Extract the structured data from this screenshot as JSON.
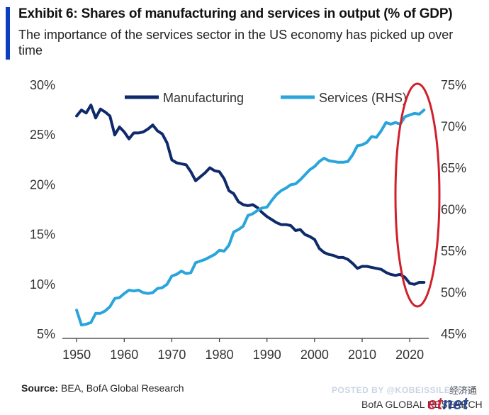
{
  "header": {
    "title": "Exhibit 6: Shares of manufacturing and services in output (% of GDP)",
    "subtitle": "The importance of the services sector in the US economy has picked up over time"
  },
  "footer": {
    "source_label": "Source:",
    "source_text": "BEA, BofA Global Research",
    "posted_by": "POSTED BY @KOBEISSILETTER",
    "bofa": "BofA GLOBAL RESEARCH",
    "wm_cn": "经济通",
    "wm_logo_et": "et",
    "wm_logo_net": "net"
  },
  "chart_data": {
    "type": "line",
    "title": "",
    "xlim": [
      1947,
      2024
    ],
    "x_ticks": [
      1950,
      1960,
      1970,
      1980,
      1990,
      2000,
      2010,
      2020
    ],
    "left_axis": {
      "lim": [
        5,
        30
      ],
      "ticks": [
        5,
        10,
        15,
        20,
        25,
        30
      ],
      "suffix": "%"
    },
    "right_axis": {
      "lim": [
        45,
        75
      ],
      "ticks": [
        45,
        50,
        55,
        60,
        65,
        70,
        75
      ],
      "suffix": "%"
    },
    "legend_position": "top-center",
    "grid": false,
    "series": [
      {
        "name": "Manufacturing",
        "axis": "left",
        "color": "#0f2a6b",
        "x": [
          1950,
          1951,
          1952,
          1953,
          1954,
          1955,
          1956,
          1957,
          1958,
          1959,
          1960,
          1961,
          1962,
          1963,
          1964,
          1965,
          1966,
          1967,
          1968,
          1969,
          1970,
          1971,
          1972,
          1973,
          1974,
          1975,
          1976,
          1977,
          1978,
          1979,
          1980,
          1981,
          1982,
          1983,
          1984,
          1985,
          1986,
          1987,
          1988,
          1989,
          1990,
          1991,
          1992,
          1993,
          1994,
          1995,
          1996,
          1997,
          1998,
          1999,
          2000,
          2001,
          2002,
          2003,
          2004,
          2005,
          2006,
          2007,
          2008,
          2009,
          2010,
          2011,
          2012,
          2013,
          2014,
          2015,
          2016,
          2017,
          2018,
          2019,
          2020,
          2021,
          2022,
          2023
        ],
        "values": [
          26.9,
          27.5,
          27.2,
          28.0,
          26.7,
          27.6,
          27.3,
          26.9,
          25.0,
          25.8,
          25.3,
          24.6,
          25.2,
          25.2,
          25.3,
          25.6,
          26.0,
          25.4,
          25.1,
          24.2,
          22.5,
          22.2,
          22.1,
          22.0,
          21.3,
          20.4,
          20.8,
          21.2,
          21.7,
          21.4,
          21.3,
          20.6,
          19.4,
          19.1,
          18.3,
          18.0,
          17.9,
          18.0,
          17.7,
          17.2,
          16.8,
          16.5,
          16.2,
          16.0,
          16.0,
          15.9,
          15.4,
          15.5,
          15.0,
          14.8,
          14.5,
          13.6,
          13.2,
          13.0,
          12.9,
          12.7,
          12.7,
          12.5,
          12.1,
          11.6,
          11.8,
          11.8,
          11.7,
          11.6,
          11.5,
          11.2,
          11.0,
          10.9,
          11.0,
          10.7,
          10.1,
          10.0,
          10.2,
          10.2
        ]
      },
      {
        "name": "Services (RHS)",
        "axis": "right",
        "color": "#2aa5dc",
        "x": [
          1950,
          1951,
          1952,
          1953,
          1954,
          1955,
          1956,
          1957,
          1958,
          1959,
          1960,
          1961,
          1962,
          1963,
          1964,
          1965,
          1966,
          1967,
          1968,
          1969,
          1970,
          1971,
          1972,
          1973,
          1974,
          1975,
          1976,
          1977,
          1978,
          1979,
          1980,
          1981,
          1982,
          1983,
          1984,
          1985,
          1986,
          1987,
          1988,
          1989,
          1990,
          1991,
          1992,
          1993,
          1994,
          1995,
          1996,
          1997,
          1998,
          1999,
          2000,
          2001,
          2002,
          2003,
          2004,
          2005,
          2006,
          2007,
          2008,
          2009,
          2010,
          2011,
          2012,
          2013,
          2014,
          2015,
          2016,
          2017,
          2018,
          2019,
          2020,
          2021,
          2022,
          2023
        ],
        "values": [
          47.9,
          46.1,
          46.2,
          46.4,
          47.5,
          47.5,
          47.8,
          48.3,
          49.3,
          49.4,
          49.9,
          50.3,
          50.2,
          50.3,
          50.0,
          49.9,
          50.0,
          50.5,
          50.6,
          51.0,
          52.0,
          52.2,
          52.6,
          52.3,
          52.4,
          53.6,
          53.8,
          54.0,
          54.3,
          54.6,
          55.1,
          55.0,
          55.7,
          57.3,
          57.6,
          58.0,
          59.3,
          59.5,
          59.9,
          60.2,
          60.3,
          61.1,
          61.8,
          62.3,
          62.6,
          63.0,
          63.1,
          63.6,
          64.2,
          64.8,
          65.2,
          65.8,
          66.2,
          65.9,
          65.8,
          65.7,
          65.7,
          65.8,
          66.6,
          67.7,
          67.8,
          68.1,
          68.8,
          68.7,
          69.5,
          70.5,
          70.3,
          70.5,
          70.3,
          71.2,
          71.4,
          71.6,
          71.5,
          72.0
        ]
      }
    ]
  }
}
